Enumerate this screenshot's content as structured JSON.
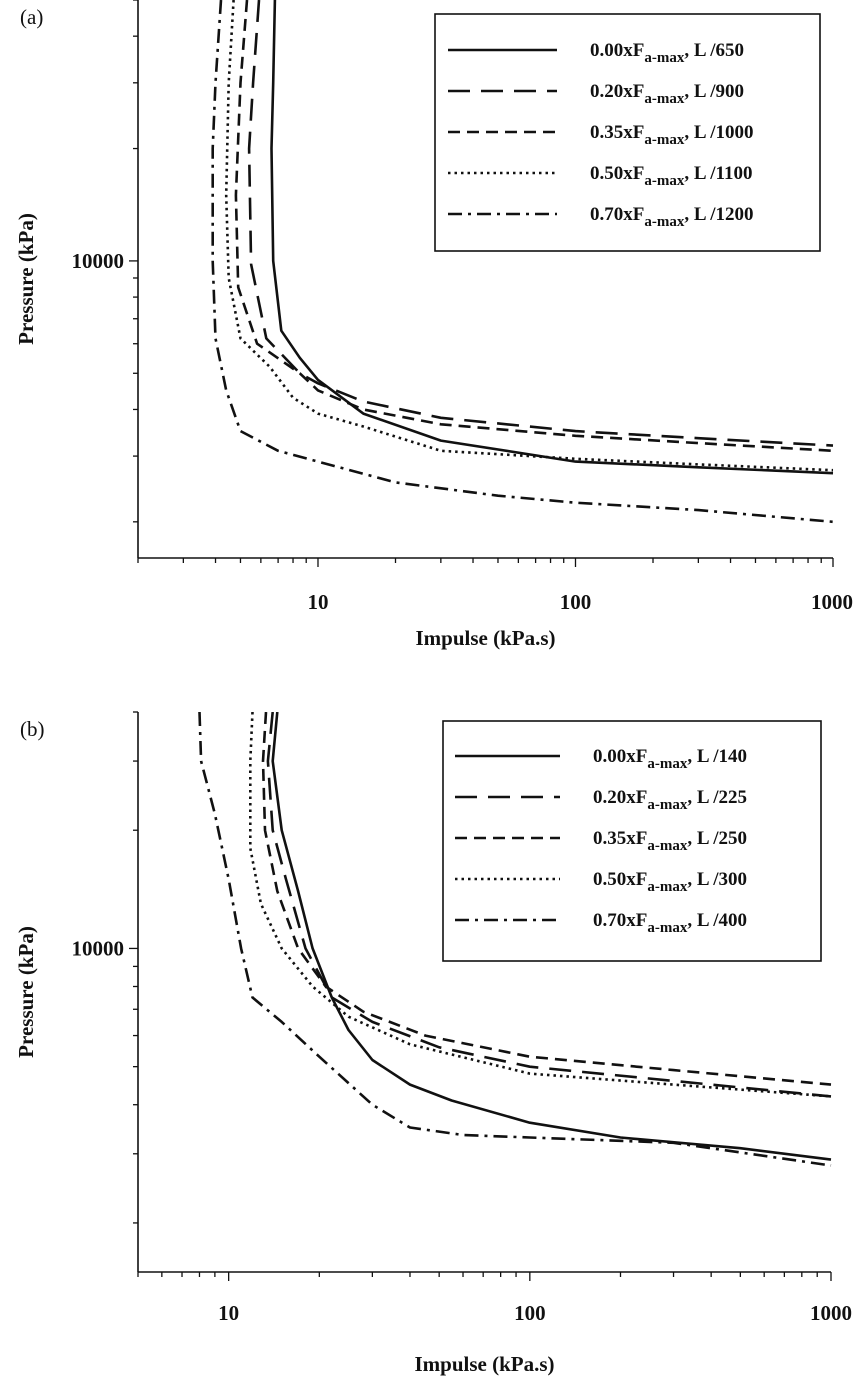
{
  "chart_data": [
    {
      "type": "line",
      "panel_label": "(a)",
      "xlabel": "Impulse (kPa.s)",
      "ylabel": "Pressure (kPa)",
      "x_scale": "log",
      "y_scale": "log",
      "xlim": [
        2,
        1000
      ],
      "ylim": [
        1600,
        50000
      ],
      "x_ticks": [
        {
          "value": 10,
          "label": "10"
        },
        {
          "value": 100,
          "label": "100"
        },
        {
          "value": 1000,
          "label": "1000"
        }
      ],
      "y_ticks": [
        {
          "value": 10000,
          "label": "10000"
        }
      ],
      "grid": false,
      "legend_position": "top-right",
      "series": [
        {
          "label_main": "0.00xF",
          "label_sub": "a-max",
          "label_tail": ", L /650",
          "dash": "solid",
          "points": [
            [
              6.8,
              50000
            ],
            [
              6.7,
              30000
            ],
            [
              6.6,
              20000
            ],
            [
              6.7,
              10000
            ],
            [
              7.2,
              6500
            ],
            [
              8.5,
              5500
            ],
            [
              10,
              4800
            ],
            [
              15,
              3900
            ],
            [
              30,
              3300
            ],
            [
              100,
              2900
            ],
            [
              300,
              2800
            ],
            [
              1000,
              2700
            ]
          ]
        },
        {
          "label_main": "0.20xF",
          "label_sub": "a-max",
          "label_tail": ", L /900",
          "dash": "longdash",
          "points": [
            [
              5.9,
              50000
            ],
            [
              5.6,
              30000
            ],
            [
              5.4,
              20000
            ],
            [
              5.5,
              9800
            ],
            [
              6.3,
              6200
            ],
            [
              8.5,
              5000
            ],
            [
              10,
              4700
            ],
            [
              15,
              4200
            ],
            [
              30,
              3800
            ],
            [
              100,
              3500
            ],
            [
              300,
              3350
            ],
            [
              1000,
              3200
            ]
          ]
        },
        {
          "label_main": "0.35xF",
          "label_sub": "a-max",
          "label_tail": ", L /1000",
          "dash": "shortdash",
          "points": [
            [
              5.3,
              50000
            ],
            [
              5.0,
              30000
            ],
            [
              4.8,
              15000
            ],
            [
              4.9,
              8500
            ],
            [
              5.8,
              6000
            ],
            [
              8.5,
              5000
            ],
            [
              10,
              4500
            ],
            [
              15,
              4000
            ],
            [
              30,
              3650
            ],
            [
              100,
              3400
            ],
            [
              300,
              3250
            ],
            [
              1000,
              3100
            ]
          ]
        },
        {
          "label_main": "0.50xF",
          "label_sub": "a-max",
          "label_tail": ", L /1100",
          "dash": "dotted",
          "points": [
            [
              4.7,
              50000
            ],
            [
              4.5,
              30000
            ],
            [
              4.4,
              15000
            ],
            [
              4.5,
              9000
            ],
            [
              5.0,
              6200
            ],
            [
              6.5,
              5200
            ],
            [
              8,
              4300
            ],
            [
              10,
              3900
            ],
            [
              15,
              3600
            ],
            [
              30,
              3100
            ],
            [
              100,
              2950
            ],
            [
              300,
              2850
            ],
            [
              1000,
              2750
            ]
          ]
        },
        {
          "label_main": "0.70xF",
          "label_sub": "a-max",
          "label_tail": ", L /1200",
          "dash": "dashdot",
          "points": [
            [
              4.2,
              50000
            ],
            [
              4.0,
              30000
            ],
            [
              3.9,
              20000
            ],
            [
              3.9,
              10000
            ],
            [
              4.0,
              6200
            ],
            [
              4.4,
              4500
            ],
            [
              5,
              3500
            ],
            [
              7,
              3100
            ],
            [
              10,
              2900
            ],
            [
              20,
              2550
            ],
            [
              50,
              2350
            ],
            [
              100,
              2250
            ],
            [
              300,
              2150
            ],
            [
              1000,
              2000
            ]
          ]
        }
      ]
    },
    {
      "type": "line",
      "panel_label": "(b)",
      "xlabel": "Impulse (kPa.s)",
      "ylabel": "Pressure (kPa)",
      "x_scale": "log",
      "y_scale": "log",
      "xlim": [
        5,
        1000
      ],
      "ylim": [
        1500,
        40000
      ],
      "x_ticks": [
        {
          "value": 10,
          "label": "10"
        },
        {
          "value": 100,
          "label": "100"
        },
        {
          "value": 1000,
          "label": "1000"
        }
      ],
      "y_ticks": [
        {
          "value": 10000,
          "label": "10000"
        }
      ],
      "grid": false,
      "legend_position": "top-right",
      "series": [
        {
          "label_main": "0.00xF",
          "label_sub": "a-max",
          "label_tail": ", L /140",
          "dash": "solid",
          "points": [
            [
              14.5,
              40000
            ],
            [
              14,
              30000
            ],
            [
              15,
              20000
            ],
            [
              17,
              14000
            ],
            [
              19,
              10000
            ],
            [
              22,
              7500
            ],
            [
              25,
              6200
            ],
            [
              30,
              5200
            ],
            [
              40,
              4500
            ],
            [
              55,
              4100
            ],
            [
              100,
              3600
            ],
            [
              200,
              3300
            ],
            [
              500,
              3100
            ],
            [
              1000,
              2900
            ]
          ]
        },
        {
          "label_main": "0.20xF",
          "label_sub": "a-max",
          "label_tail": ", L /225",
          "dash": "longdash",
          "points": [
            [
              14,
              40000
            ],
            [
              13.5,
              30000
            ],
            [
              14,
              20000
            ],
            [
              15.5,
              15000
            ],
            [
              18,
              10000
            ],
            [
              22,
              7500
            ],
            [
              30,
              6500
            ],
            [
              50,
              5600
            ],
            [
              100,
              5000
            ],
            [
              300,
              4600
            ],
            [
              1000,
              4200
            ]
          ]
        },
        {
          "label_main": "0.35xF",
          "label_sub": "a-max",
          "label_tail": ", L /250",
          "dash": "shortdash",
          "points": [
            [
              13.3,
              40000
            ],
            [
              13,
              30000
            ],
            [
              13.2,
              20000
            ],
            [
              14.5,
              14000
            ],
            [
              17,
              10000
            ],
            [
              21,
              8000
            ],
            [
              28,
              6900
            ],
            [
              45,
              6000
            ],
            [
              100,
              5300
            ],
            [
              300,
              4900
            ],
            [
              1000,
              4500
            ]
          ]
        },
        {
          "label_main": "0.50xF",
          "label_sub": "a-max",
          "label_tail": ", L /300",
          "dash": "dotted",
          "points": [
            [
              12,
              40000
            ],
            [
              11.8,
              30000
            ],
            [
              11.8,
              18000
            ],
            [
              12.8,
              13000
            ],
            [
              15,
              10000
            ],
            [
              19,
              8000
            ],
            [
              25,
              6700
            ],
            [
              40,
              5700
            ],
            [
              100,
              4800
            ],
            [
              300,
              4500
            ],
            [
              1000,
              4200
            ]
          ]
        },
        {
          "label_main": "0.70xF",
          "label_sub": "a-max",
          "label_tail": ", L /400",
          "dash": "dashdot",
          "points": [
            [
              8,
              40000
            ],
            [
              8.1,
              30000
            ],
            [
              9,
              22000
            ],
            [
              10,
              15000
            ],
            [
              11,
              10000
            ],
            [
              12,
              7500
            ],
            [
              15,
              6500
            ],
            [
              20,
              5300
            ],
            [
              30,
              4000
            ],
            [
              40,
              3500
            ],
            [
              60,
              3350
            ],
            [
              100,
              3300
            ],
            [
              300,
              3200
            ],
            [
              1000,
              2800
            ]
          ]
        }
      ]
    }
  ]
}
